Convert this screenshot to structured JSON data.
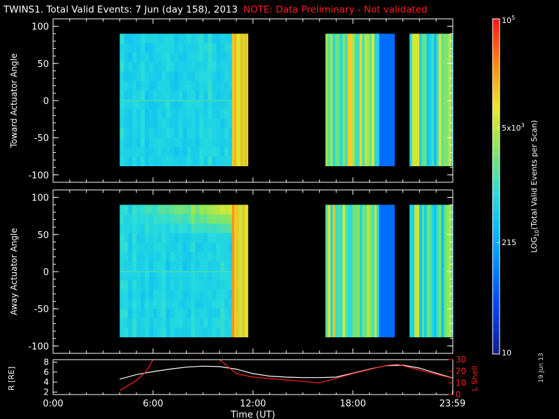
{
  "title": {
    "main": "TWINS1. Total Valid Events:  7 Jun (day 158), 2013",
    "note": "NOTE: Data Preliminary - Not validated"
  },
  "colorbar": {
    "label": "LOG10(Total Valid Events per Scan)",
    "tick_labels": [
      "10",
      "215",
      "5x10^3",
      "10^5"
    ],
    "tick_values": [
      10,
      215,
      5000,
      100000
    ],
    "scale": "log"
  },
  "date_stamp": "19 Jun 13",
  "chart_data": [
    {
      "type": "heatmap",
      "name": "toward",
      "ylabel": "Toward Actuator Angle",
      "ylim": [
        -110,
        110
      ],
      "yticks": [
        100,
        50,
        0,
        -50,
        -100
      ],
      "xlim_hours": [
        0,
        24
      ],
      "data_range_deg": [
        -88,
        90
      ],
      "segments": [
        {
          "start": 4.0,
          "end": 10.75,
          "level": 0.45
        },
        {
          "start": 10.75,
          "end": 11.7,
          "level": 0.75
        },
        {
          "start": 16.35,
          "end": 20.5,
          "level": 0.62
        },
        {
          "start": 21.4,
          "end": 23.97,
          "level": 0.55
        }
      ]
    },
    {
      "type": "heatmap",
      "name": "away",
      "ylabel": "Away Actuator Angle",
      "ylim": [
        -110,
        110
      ],
      "yticks": [
        100,
        50,
        0,
        -50,
        -100
      ],
      "xlim_hours": [
        0,
        24
      ],
      "data_range_deg": [
        -88,
        90
      ],
      "segments": [
        {
          "start": 4.0,
          "end": 10.75,
          "level": 0.45
        },
        {
          "start": 10.75,
          "end": 11.7,
          "level": 0.78
        },
        {
          "start": 16.35,
          "end": 20.5,
          "level": 0.62
        },
        {
          "start": 21.4,
          "end": 23.97,
          "level": 0.55
        }
      ]
    },
    {
      "type": "line",
      "name": "orbit",
      "xlabel": "Time (UT)",
      "xtick_labels": [
        "0:00",
        "6:00",
        "12:00",
        "18:00",
        "23:59"
      ],
      "xtick_hours": [
        0,
        6,
        12,
        18,
        23.98
      ],
      "xlim": [
        0,
        24
      ],
      "left_axis": {
        "label": "R [RE]",
        "ylim": [
          1.5,
          8.5
        ],
        "ticks": [
          2,
          4,
          6,
          8
        ]
      },
      "right_axis": {
        "label": "L Shell",
        "ylim": [
          0,
          30
        ],
        "ticks": [
          0,
          10,
          20,
          30
        ]
      },
      "series": [
        {
          "axis": "left",
          "color": "#ffffff",
          "x": [
            4.0,
            5.0,
            6.0,
            7.0,
            8.0,
            9.0,
            10.0,
            11.0,
            12.0,
            13.0,
            14.0,
            15.0,
            16.0,
            17.0,
            18.0,
            19.0,
            20.0,
            21.0,
            22.0,
            23.0,
            24.0
          ],
          "y": [
            4.6,
            5.5,
            6.1,
            6.6,
            7.0,
            7.2,
            7.1,
            6.6,
            5.7,
            5.2,
            5.0,
            4.9,
            4.9,
            5.0,
            5.8,
            6.6,
            7.3,
            7.4,
            6.8,
            5.8,
            4.8
          ]
        },
        {
          "axis": "right",
          "color": "#ff2020",
          "x": [
            4.0,
            5.0,
            5.6,
            6.0,
            10.0,
            11.0,
            12.0,
            16.0,
            18.0,
            20.0,
            20.7,
            22.0,
            24.0
          ],
          "y": [
            3.5,
            12.0,
            20.0,
            30.0,
            30.0,
            18.0,
            15.0,
            10.0,
            18.0,
            25.0,
            26.0,
            21.0,
            14.0
          ]
        }
      ]
    }
  ]
}
